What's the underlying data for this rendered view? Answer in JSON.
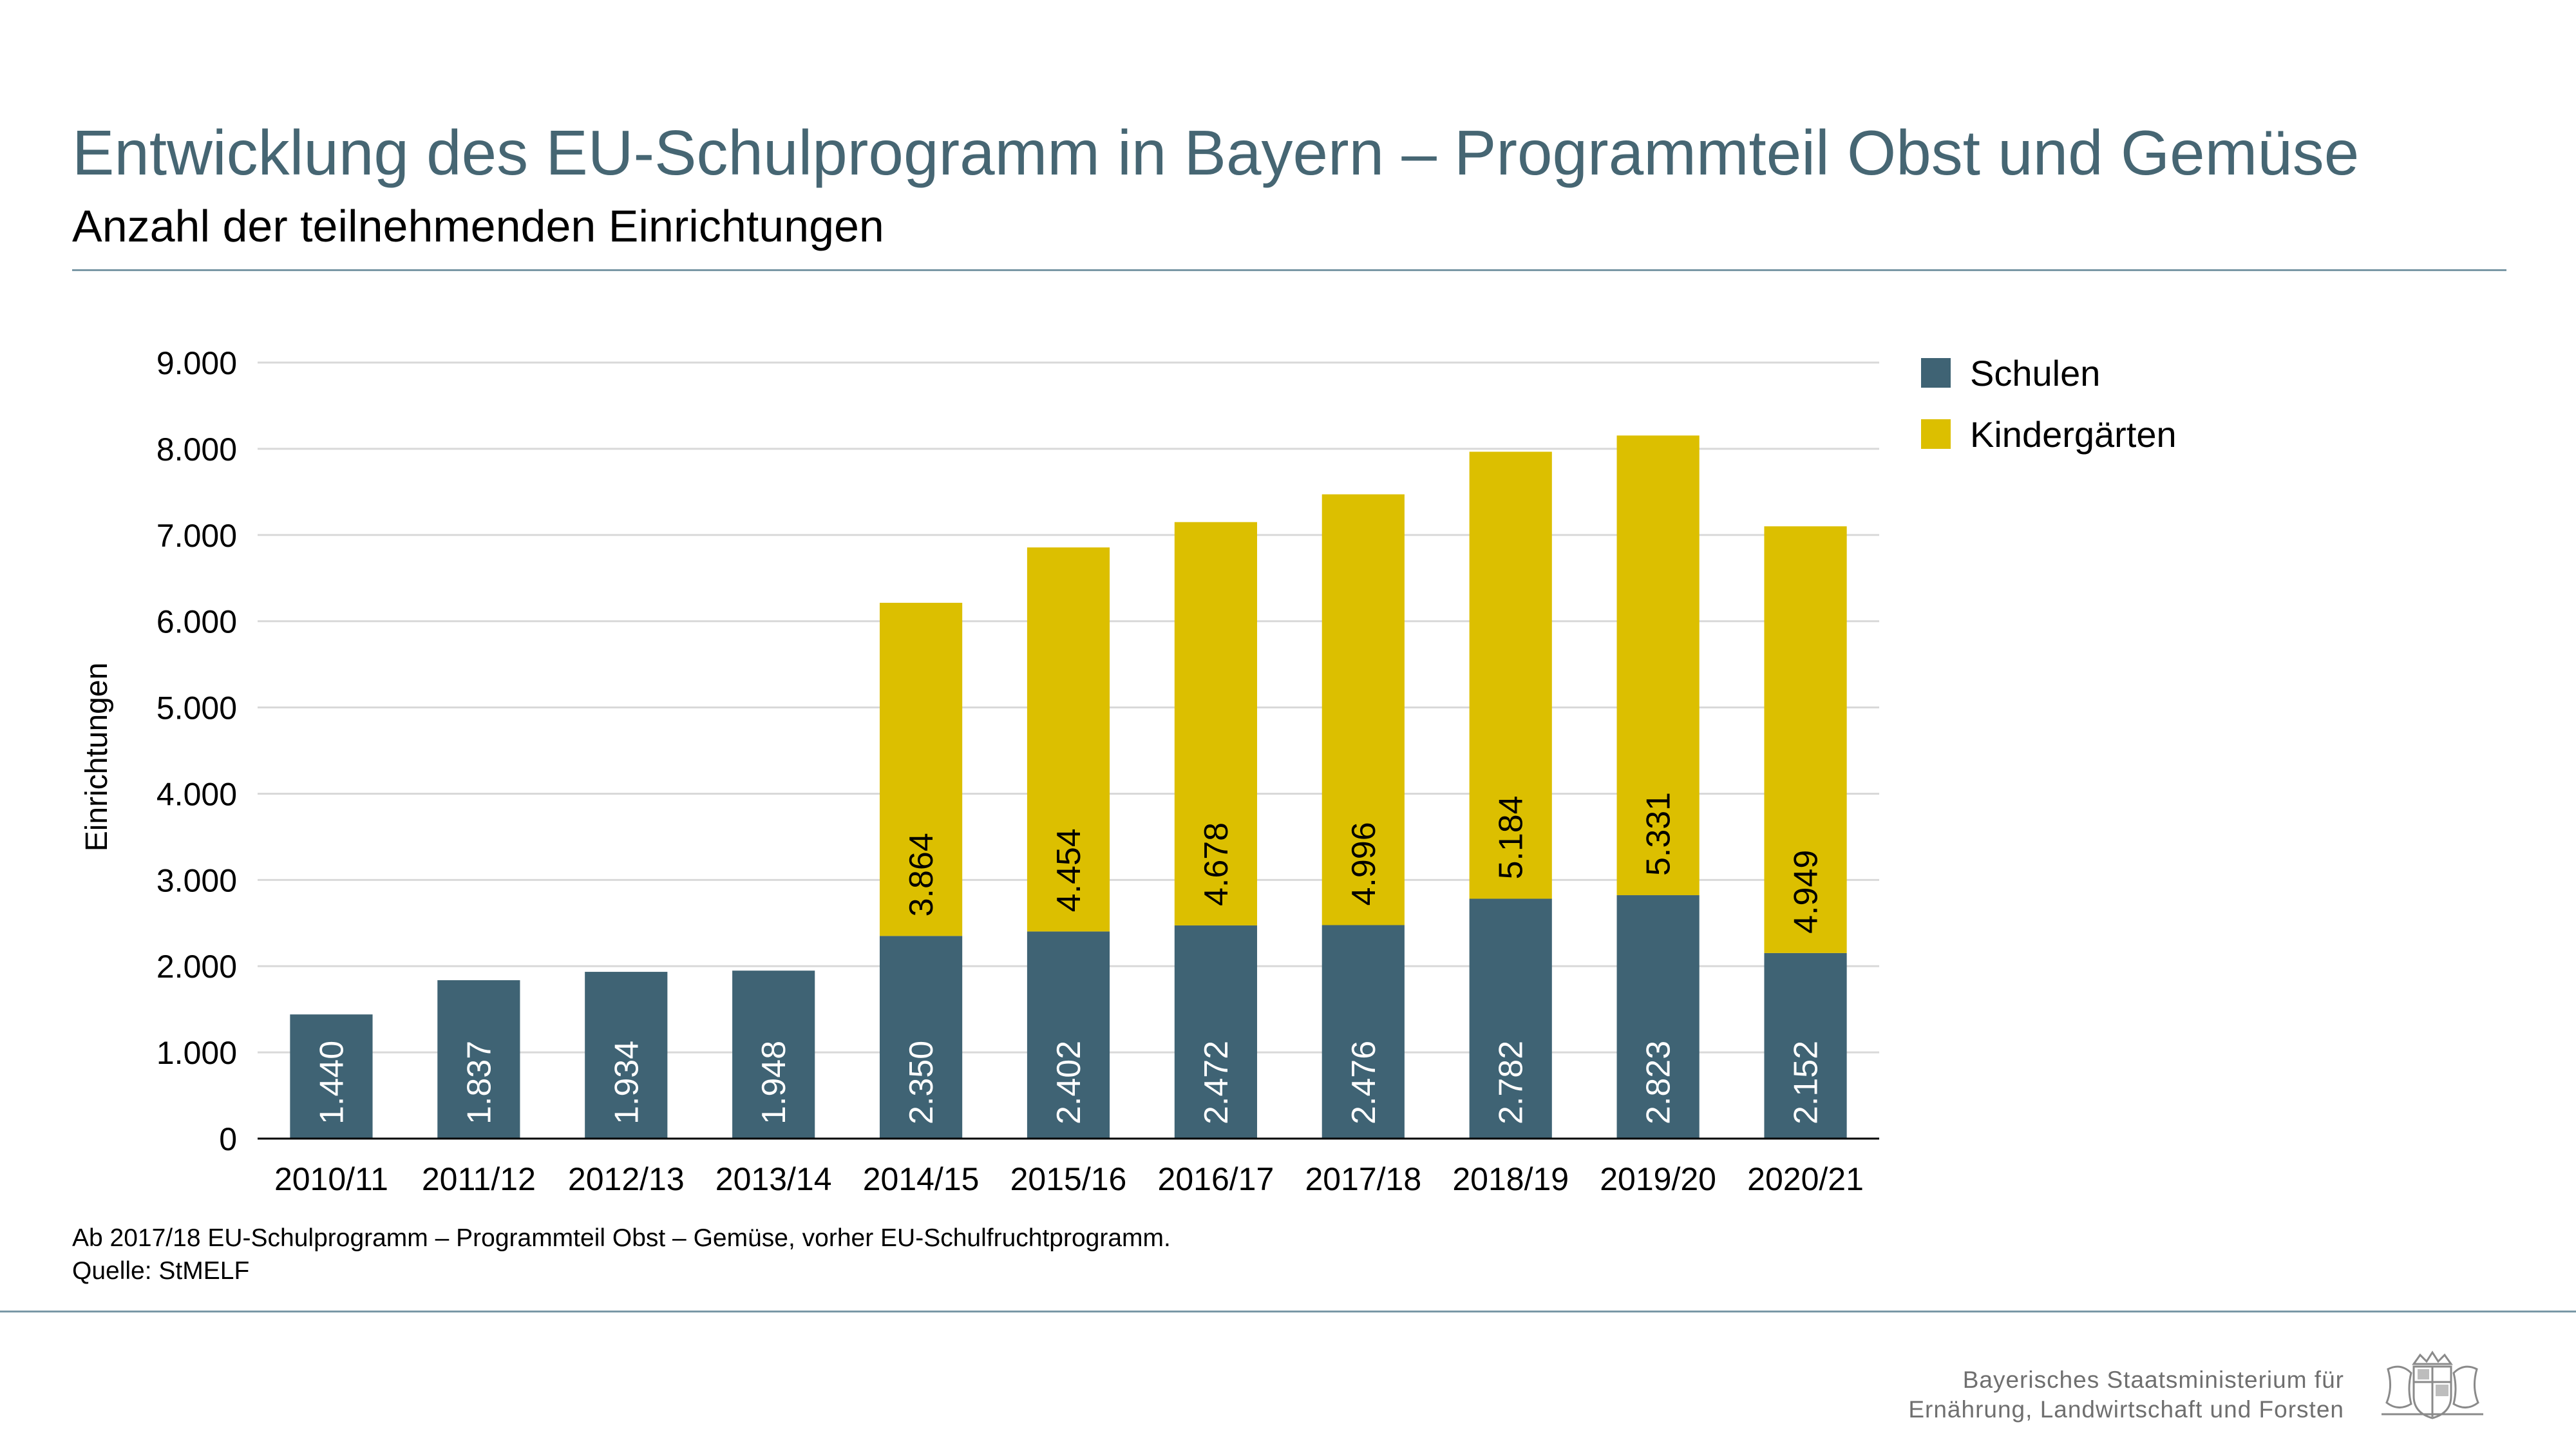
{
  "header": {
    "title": "Entwicklung des EU-Schulprogramm in Bayern – Programmteil Obst und Gemüse",
    "subtitle": "Anzahl der teilnehmenden Einrichtungen"
  },
  "footer": {
    "note": "Ab 2017/18 EU-Schulprogramm – Programmteil Obst – Gemüse, vorher EU-Schulfruchtprogramm.",
    "source": "Quelle: StMELF",
    "ministry_line1": "Bayerisches Staatsministerium für",
    "ministry_line2": "Ernährung, Landwirtschaft und Forsten"
  },
  "logo": {
    "icon": "bavarian-coat-of-arms-icon"
  },
  "chart_data": {
    "type": "bar",
    "stacked": true,
    "categories": [
      "2010/11",
      "2011/12",
      "2012/13",
      "2013/14",
      "2014/15",
      "2015/16",
      "2016/17",
      "2017/18",
      "2018/19",
      "2019/20",
      "2020/21"
    ],
    "series": [
      {
        "name": "Schulen",
        "color": "#3f6374",
        "label_color": "#ffffff",
        "values": [
          1440,
          1837,
          1934,
          1948,
          2350,
          2402,
          2472,
          2476,
          2782,
          2823,
          2152
        ],
        "labels": [
          "1.440",
          "1.837",
          "1.934",
          "1.948",
          "2.350",
          "2.402",
          "2.472",
          "2.476",
          "2.782",
          "2.823",
          "2.152"
        ]
      },
      {
        "name": "Kindergärten",
        "color": "#dcbf00",
        "label_color": "#000000",
        "values": [
          0,
          0,
          0,
          0,
          3864,
          4454,
          4678,
          4996,
          5184,
          5331,
          4949
        ],
        "labels": [
          "",
          "",
          "",
          "",
          "3.864",
          "4.454",
          "4.678",
          "4.996",
          "5.184",
          "5.331",
          "4.949"
        ]
      }
    ],
    "ylabel": "Einrichtungen",
    "xlabel": "",
    "ylim": [
      0,
      9000
    ],
    "yticks": [
      0,
      1000,
      2000,
      3000,
      4000,
      5000,
      6000,
      7000,
      8000,
      9000
    ],
    "ytick_labels": [
      "0",
      "1.000",
      "2.000",
      "3.000",
      "4.000",
      "5.000",
      "6.000",
      "7.000",
      "8.000",
      "9.000"
    ],
    "grid": true,
    "legend": "right"
  }
}
